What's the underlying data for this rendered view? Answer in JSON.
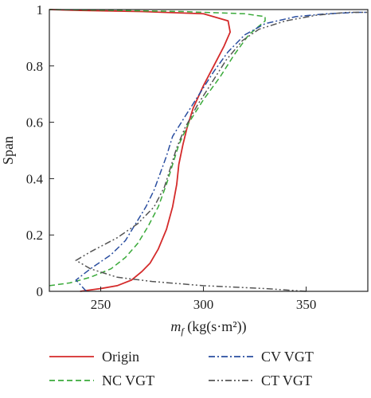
{
  "chart_data": {
    "type": "line",
    "xlabel_main": "m",
    "xlabel_sub": "f",
    "xlabel_units": " (kg(s·m²))",
    "ylabel": "Span",
    "xlim": [
      225,
      380
    ],
    "ylim": [
      0,
      1
    ],
    "xticks": [
      250,
      300,
      350
    ],
    "yticks": [
      0,
      0.2,
      0.4,
      0.6,
      0.8,
      1
    ],
    "yticklabels": [
      "0",
      "0.2",
      "0.4",
      "0.6",
      "0.8",
      "1"
    ],
    "grid": false,
    "legend_position": "bottom",
    "series": [
      {
        "name": "Origin",
        "color": "#d42a2a",
        "dash": "solid",
        "points": [
          [
            240,
            0.0
          ],
          [
            250,
            0.01
          ],
          [
            258,
            0.02
          ],
          [
            265,
            0.04
          ],
          [
            270,
            0.07
          ],
          [
            274,
            0.1
          ],
          [
            278,
            0.15
          ],
          [
            282,
            0.22
          ],
          [
            285,
            0.3
          ],
          [
            287,
            0.38
          ],
          [
            288,
            0.45
          ],
          [
            290,
            0.52
          ],
          [
            292,
            0.58
          ],
          [
            295,
            0.65
          ],
          [
            300,
            0.73
          ],
          [
            305,
            0.8
          ],
          [
            310,
            0.87
          ],
          [
            313,
            0.92
          ],
          [
            312,
            0.96
          ],
          [
            300,
            0.985
          ],
          [
            270,
            0.993
          ],
          [
            240,
            0.997
          ],
          [
            225,
            1.0
          ]
        ]
      },
      {
        "name": "NC VGT",
        "color": "#3aaa3a",
        "dash": "dash",
        "points": [
          [
            225,
            0.02
          ],
          [
            235,
            0.03
          ],
          [
            245,
            0.05
          ],
          [
            255,
            0.08
          ],
          [
            262,
            0.12
          ],
          [
            268,
            0.17
          ],
          [
            273,
            0.23
          ],
          [
            278,
            0.3
          ],
          [
            282,
            0.38
          ],
          [
            285,
            0.45
          ],
          [
            288,
            0.52
          ],
          [
            293,
            0.6
          ],
          [
            300,
            0.68
          ],
          [
            308,
            0.76
          ],
          [
            315,
            0.84
          ],
          [
            322,
            0.91
          ],
          [
            330,
            0.96
          ],
          [
            330,
            0.975
          ],
          [
            320,
            0.985
          ],
          [
            290,
            0.993
          ],
          [
            250,
            0.998
          ],
          [
            225,
            1.0
          ]
        ]
      },
      {
        "name": "CV VGT",
        "color": "#2a4ea0",
        "dash": "dashdot",
        "points": [
          [
            243,
            0.0
          ],
          [
            238,
            0.04
          ],
          [
            245,
            0.08
          ],
          [
            255,
            0.13
          ],
          [
            262,
            0.18
          ],
          [
            267,
            0.24
          ],
          [
            272,
            0.3
          ],
          [
            276,
            0.36
          ],
          [
            279,
            0.42
          ],
          [
            282,
            0.48
          ],
          [
            285,
            0.55
          ],
          [
            291,
            0.62
          ],
          [
            298,
            0.7
          ],
          [
            305,
            0.78
          ],
          [
            312,
            0.85
          ],
          [
            320,
            0.91
          ],
          [
            330,
            0.95
          ],
          [
            345,
            0.975
          ],
          [
            360,
            0.985
          ],
          [
            375,
            0.99
          ],
          [
            380,
            0.99
          ]
        ]
      },
      {
        "name": "CT VGT",
        "color": "#555555",
        "dash": "dashdotdot",
        "points": [
          [
            350,
            0.0
          ],
          [
            330,
            0.01
          ],
          [
            300,
            0.02
          ],
          [
            275,
            0.035
          ],
          [
            258,
            0.05
          ],
          [
            245,
            0.08
          ],
          [
            238,
            0.11
          ],
          [
            245,
            0.14
          ],
          [
            258,
            0.19
          ],
          [
            268,
            0.24
          ],
          [
            276,
            0.3
          ],
          [
            281,
            0.37
          ],
          [
            284,
            0.44
          ],
          [
            287,
            0.51
          ],
          [
            291,
            0.58
          ],
          [
            297,
            0.66
          ],
          [
            304,
            0.74
          ],
          [
            311,
            0.82
          ],
          [
            319,
            0.89
          ],
          [
            327,
            0.93
          ],
          [
            340,
            0.96
          ],
          [
            355,
            0.98
          ],
          [
            370,
            0.99
          ],
          [
            380,
            0.99
          ]
        ]
      }
    ],
    "legend": [
      {
        "label": "Origin",
        "color": "#d42a2a",
        "dash": "solid"
      },
      {
        "label": "CV VGT",
        "color": "#2a4ea0",
        "dash": "dashdot"
      },
      {
        "label": "NC VGT",
        "color": "#3aaa3a",
        "dash": "dash"
      },
      {
        "label": "CT VGT",
        "color": "#555555",
        "dash": "dashdotdot"
      }
    ]
  }
}
